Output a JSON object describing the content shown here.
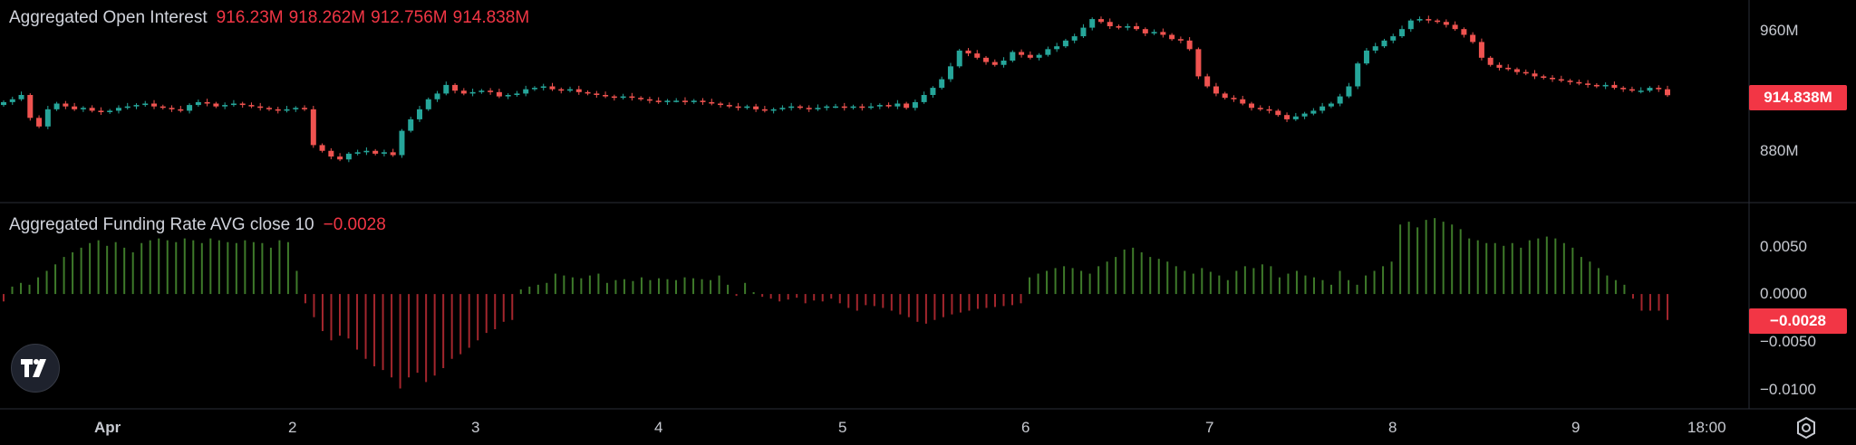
{
  "panels": {
    "open_interest": {
      "title": "Aggregated Open Interest",
      "ohlc": [
        "916.23M",
        "918.262M",
        "912.756M",
        "914.838M"
      ],
      "price_tag": "914.838M",
      "y_ticks": [
        "960M",
        "880M"
      ]
    },
    "funding": {
      "title": "Aggregated Funding Rate AVG close 10",
      "value": "−0.0028",
      "price_tag": "−0.0028",
      "y_ticks": [
        "0.0050",
        "0.0000",
        "−0.0050",
        "−0.0100"
      ]
    }
  },
  "x_ticks": [
    "Apr",
    "2",
    "3",
    "4",
    "5",
    "6",
    "7",
    "8",
    "9",
    "18:00"
  ],
  "icons": {
    "logo": "tradingview-logo-icon",
    "settings": "gear-icon"
  },
  "colors": {
    "up": "#26a69a",
    "down": "#ef5350",
    "funding_pos": "#3e7a2a",
    "funding_neg": "#a3262d"
  },
  "chart_data": [
    {
      "type": "candlestick",
      "title": "Aggregated Open Interest",
      "ylim": [
        855,
        975
      ],
      "y_ticks": [
        960,
        880
      ],
      "close": [
        910,
        912,
        915,
        899,
        893,
        905,
        909,
        907,
        905,
        906,
        904,
        903,
        904,
        906,
        907,
        908,
        909,
        907,
        906,
        905,
        904,
        908,
        910,
        909,
        907,
        908,
        909,
        908,
        907,
        906,
        905,
        904,
        905,
        906,
        905,
        880,
        876,
        872,
        870,
        874,
        875,
        876,
        874,
        875,
        873,
        890,
        898,
        905,
        912,
        916,
        922,
        918,
        916,
        917,
        918,
        917,
        914,
        915,
        916,
        919,
        920,
        921,
        919,
        918,
        919,
        917,
        916,
        915,
        914,
        913,
        914,
        913,
        912,
        911,
        910,
        911,
        911,
        910,
        911,
        910,
        909,
        908,
        907,
        906,
        907,
        905,
        904,
        905,
        906,
        907,
        906,
        905,
        906,
        907,
        907,
        906,
        907,
        906,
        907,
        908,
        907,
        909,
        906,
        910,
        915,
        920,
        926,
        935,
        946,
        944,
        941,
        938,
        936,
        939,
        945,
        943,
        941,
        943,
        947,
        949,
        953,
        956,
        962,
        968,
        966,
        963,
        962,
        963,
        961,
        958,
        959,
        957,
        954,
        953,
        947,
        928,
        921,
        916,
        913,
        912,
        909,
        906,
        905,
        904,
        901,
        898,
        900,
        902,
        904,
        907,
        909,
        914,
        921,
        937,
        946,
        949,
        953,
        956,
        961,
        967,
        968,
        967,
        966,
        964,
        961,
        957,
        952,
        941,
        936,
        934,
        933,
        931,
        930,
        928,
        927,
        926,
        925,
        924,
        923,
        922,
        921,
        922,
        920,
        919,
        918,
        918,
        920,
        919,
        914.838
      ],
      "ohlc_last": [
        916.23,
        918.262,
        912.756,
        914.838
      ]
    },
    {
      "type": "bar",
      "title": "Aggregated Funding Rate AVG close 10",
      "ylim": [
        -0.012,
        0.0085
      ],
      "y_ticks": [
        0.005,
        0.0,
        -0.005,
        -0.01
      ],
      "values": [
        -0.0008,
        0.0008,
        0.0012,
        0.001,
        0.0018,
        0.0025,
        0.0032,
        0.004,
        0.0045,
        0.005,
        0.0055,
        0.0058,
        0.0052,
        0.0056,
        0.005,
        0.0045,
        0.0055,
        0.0058,
        0.006,
        0.0058,
        0.0056,
        0.006,
        0.0058,
        0.0055,
        0.006,
        0.0058,
        0.0056,
        0.0055,
        0.0058,
        0.0056,
        0.0055,
        0.005,
        0.0058,
        0.0056,
        0.0025,
        -0.001,
        -0.0025,
        -0.004,
        -0.005,
        -0.0045,
        -0.0048,
        -0.006,
        -0.007,
        -0.0078,
        -0.0082,
        -0.009,
        -0.0102,
        -0.009,
        -0.0085,
        -0.0095,
        -0.0088,
        -0.008,
        -0.007,
        -0.0065,
        -0.0058,
        -0.005,
        -0.0042,
        -0.0038,
        -0.003,
        -0.0028,
        0.0005,
        0.0008,
        0.001,
        0.0012,
        0.0022,
        0.002,
        0.0018,
        0.0017,
        0.002,
        0.0022,
        0.0012,
        0.0015,
        0.0016,
        0.0014,
        0.0018,
        0.0015,
        0.0017,
        0.0016,
        0.0015,
        0.0018,
        0.0017,
        0.0016,
        0.0015,
        0.002,
        0.001,
        -0.0002,
        0.0012,
        0.0002,
        -0.0003,
        -0.0005,
        -0.0008,
        -0.0006,
        -0.0004,
        -0.001,
        -0.0007,
        -0.0008,
        -0.0005,
        -0.001,
        -0.0015,
        -0.0018,
        -0.0012,
        -0.0013,
        -0.0015,
        -0.0018,
        -0.0022,
        -0.0025,
        -0.003,
        -0.0032,
        -0.0028,
        -0.0025,
        -0.0022,
        -0.002,
        -0.0018,
        -0.0016,
        -0.0015,
        -0.0014,
        -0.0013,
        -0.0012,
        -0.001,
        0.0018,
        0.0022,
        0.0025,
        0.0028,
        0.003,
        0.0028,
        0.0025,
        0.0022,
        0.003,
        0.0035,
        0.004,
        0.0048,
        0.005,
        0.0045,
        0.004,
        0.0038,
        0.0035,
        0.003,
        0.0025,
        0.0022,
        0.0028,
        0.0024,
        0.002,
        0.0015,
        0.0025,
        0.003,
        0.0028,
        0.0032,
        0.003,
        0.0018,
        0.0022,
        0.0025,
        0.002,
        0.0018,
        0.0015,
        0.001,
        0.0025,
        0.0015,
        0.001,
        0.002,
        0.0025,
        0.003,
        0.0035,
        0.0075,
        0.0078,
        0.0072,
        0.008,
        0.0082,
        0.0078,
        0.0075,
        0.007,
        0.006,
        0.0058,
        0.0055,
        0.0055,
        0.0052,
        0.0055,
        0.005,
        0.0058,
        0.006,
        0.0062,
        0.006,
        0.0055,
        0.005,
        0.004,
        0.0035,
        0.0028,
        0.002,
        0.0015,
        0.001,
        -0.0005,
        -0.0018,
        -0.0018,
        -0.0018,
        -0.0028
      ]
    }
  ]
}
